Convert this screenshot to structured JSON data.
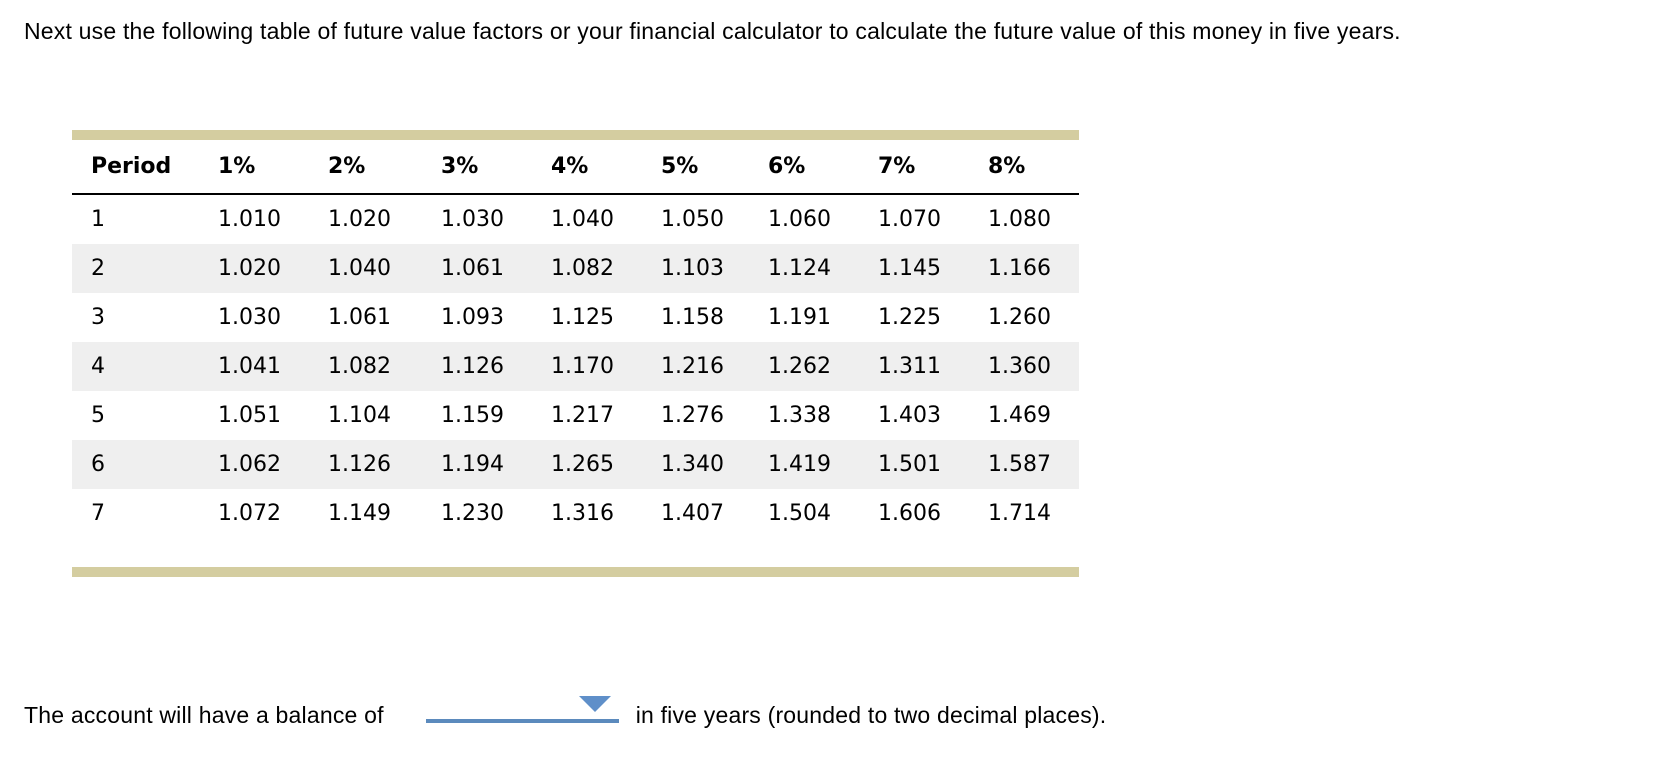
{
  "question": {
    "text": "Next use the following table of future value factors or your financial calculator to calculate the future value of this money in five years."
  },
  "table": {
    "headers": [
      "Period",
      "1%",
      "2%",
      "3%",
      "4%",
      "5%",
      "6%",
      "7%",
      "8%"
    ],
    "rows": [
      {
        "period": "1",
        "values": [
          "1.010",
          "1.020",
          "1.030",
          "1.040",
          "1.050",
          "1.060",
          "1.070",
          "1.080"
        ]
      },
      {
        "period": "2",
        "values": [
          "1.020",
          "1.040",
          "1.061",
          "1.082",
          "1.103",
          "1.124",
          "1.145",
          "1.166"
        ]
      },
      {
        "period": "3",
        "values": [
          "1.030",
          "1.061",
          "1.093",
          "1.125",
          "1.158",
          "1.191",
          "1.225",
          "1.260"
        ]
      },
      {
        "period": "4",
        "values": [
          "1.041",
          "1.082",
          "1.126",
          "1.170",
          "1.216",
          "1.262",
          "1.311",
          "1.360"
        ]
      },
      {
        "period": "5",
        "values": [
          "1.051",
          "1.104",
          "1.159",
          "1.217",
          "1.276",
          "1.338",
          "1.403",
          "1.469"
        ]
      },
      {
        "period": "6",
        "values": [
          "1.062",
          "1.126",
          "1.194",
          "1.265",
          "1.340",
          "1.419",
          "1.501",
          "1.587"
        ]
      },
      {
        "period": "7",
        "values": [
          "1.072",
          "1.149",
          "1.230",
          "1.316",
          "1.407",
          "1.504",
          "1.606",
          "1.714"
        ]
      }
    ]
  },
  "answer": {
    "prefix": "The account will have a balance of",
    "dropdown_value": "",
    "suffix": "in five years (rounded to two decimal places)."
  },
  "icons": {
    "dropdown_arrow": "triangle-down-icon"
  },
  "colors": {
    "table_accent_bar": "#d4cda0",
    "row_stripe": "#efefef",
    "dropdown_line": "#5b8abd",
    "dropdown_arrow": "#5f8fc9"
  }
}
